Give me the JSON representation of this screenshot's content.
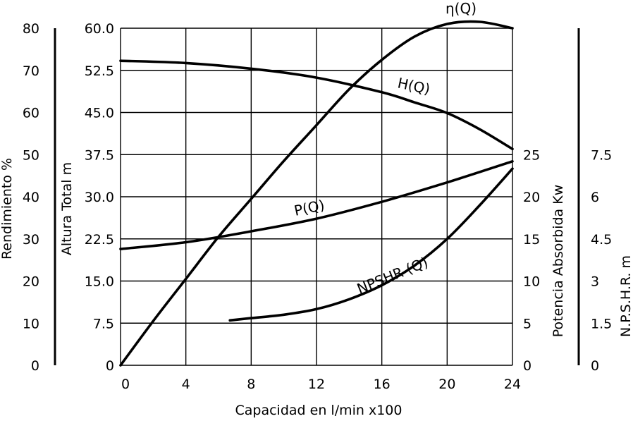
{
  "chart_data": {
    "type": "line",
    "xlabel": "Capacidad en l/min x100",
    "x_ticks": [
      "0",
      "4",
      "8",
      "12",
      "16",
      "20",
      "24"
    ],
    "xlim": [
      0,
      24
    ],
    "axes": {
      "rendimiento": {
        "label": "Rendimiento %",
        "ticks": [
          "0",
          "10",
          "20",
          "30",
          "40",
          "50",
          "60",
          "70",
          "80"
        ],
        "range": [
          0,
          80
        ]
      },
      "altura": {
        "label": "Altura Total m",
        "ticks": [
          "0",
          "7.5",
          "15.0",
          "22.5",
          "30.0",
          "37.5",
          "45.0",
          "52.5",
          "60.0"
        ],
        "range": [
          0,
          60
        ]
      },
      "potencia": {
        "label": "Potencia Absorbida Kw",
        "ticks": [
          "0",
          "5",
          "10",
          "15",
          "20",
          "25"
        ],
        "range": [
          0,
          40
        ]
      },
      "npsh": {
        "label": "N.P.S.H.R. m",
        "ticks": [
          "0",
          "1.5",
          "3",
          "4.5",
          "6",
          "7.5"
        ],
        "range": [
          0,
          12
        ]
      }
    },
    "grid": true,
    "series": [
      {
        "name": "η(Q)",
        "axis": "rendimiento",
        "x": [
          0,
          2,
          4,
          6,
          8,
          10,
          12,
          14,
          16,
          18,
          20,
          22,
          24
        ],
        "values": [
          0,
          10.5,
          20.5,
          30.5,
          39.5,
          48.5,
          57,
          65.5,
          72.5,
          78,
          81,
          81.5,
          80
        ]
      },
      {
        "name": "H(Q)",
        "axis": "altura",
        "x": [
          0,
          4,
          8,
          12,
          16,
          18,
          20,
          22,
          24
        ],
        "values": [
          54.2,
          53.8,
          52.8,
          51.2,
          48.6,
          46.8,
          44.9,
          42,
          38.5
        ]
      },
      {
        "name": "P(Q)",
        "axis": "potencia",
        "x": [
          0,
          4,
          8,
          12,
          16,
          20,
          24
        ],
        "values": [
          13.8,
          14.6,
          15.9,
          17.4,
          19.4,
          21.7,
          24.2
        ]
      },
      {
        "name": "NPSHR (Q)",
        "axis": "npsh",
        "x": [
          6.7,
          8,
          10,
          12,
          14,
          16,
          18,
          20,
          22,
          24
        ],
        "values": [
          1.6,
          1.68,
          1.8,
          2.0,
          2.35,
          2.85,
          3.55,
          4.5,
          5.7,
          7.0
        ]
      }
    ]
  }
}
